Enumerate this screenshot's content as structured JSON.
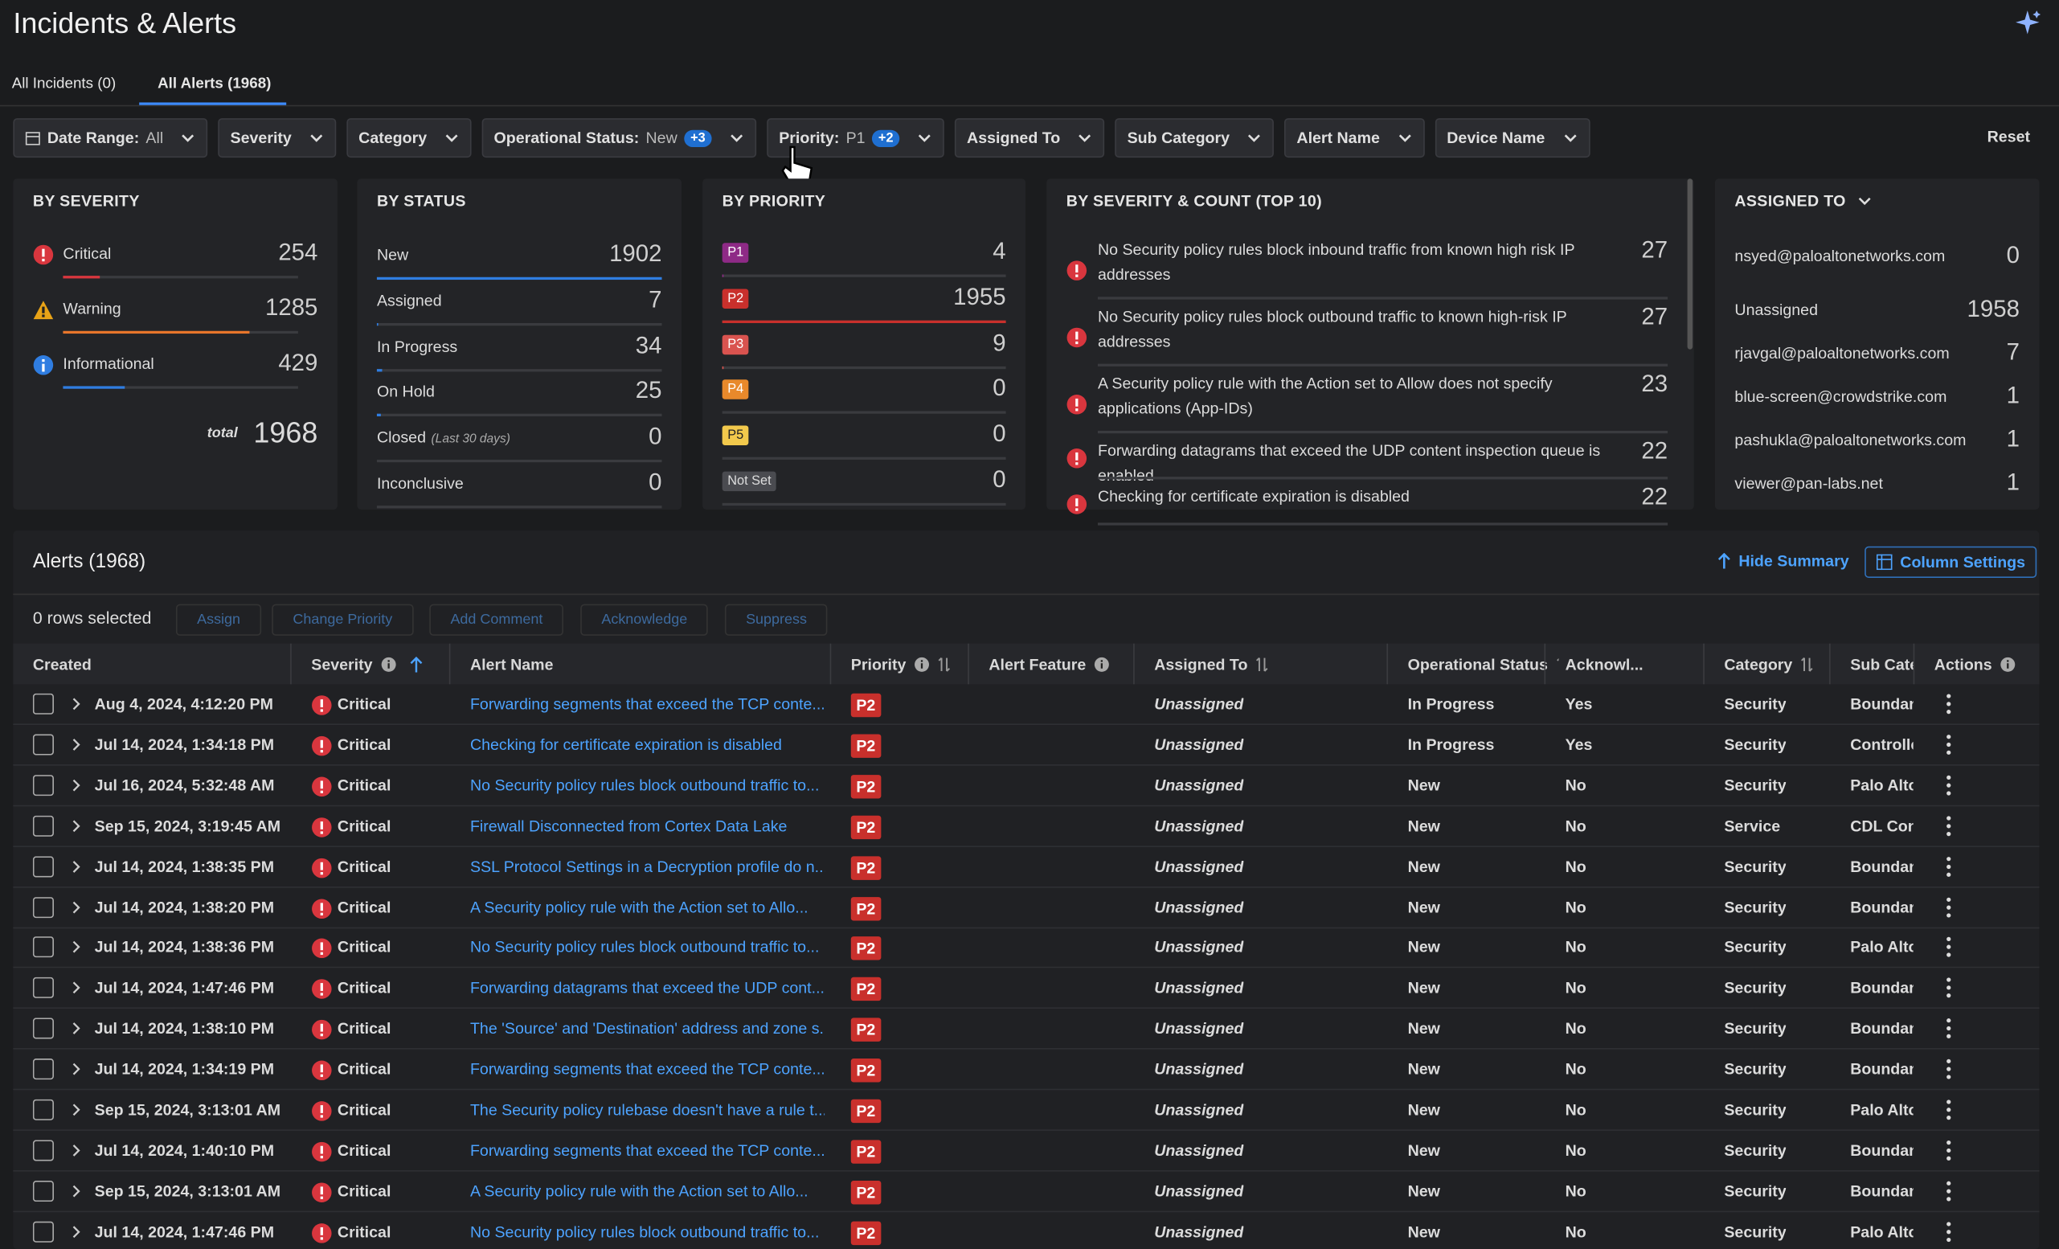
{
  "header": {
    "title": "Incidents & Alerts"
  },
  "tabs": [
    "All Incidents (0)",
    "All Alerts (1968)"
  ],
  "filters": [
    {
      "label": "Date Range:",
      "value": "All"
    },
    {
      "label": "Severity"
    },
    {
      "label": "Category"
    },
    {
      "label": "Operational Status:",
      "value": "New",
      "badge": "+3"
    },
    {
      "label": "Priority:",
      "value": "P1",
      "badge": "+2"
    },
    {
      "label": "Assigned To"
    },
    {
      "label": "Sub Category"
    },
    {
      "label": "Alert Name"
    },
    {
      "label": "Device Name"
    }
  ],
  "reset": "Reset",
  "summary": {
    "by_severity": {
      "title": "BY SEVERITY",
      "items": [
        {
          "label": "Critical",
          "count": 254
        },
        {
          "label": "Warning",
          "count": 1285
        },
        {
          "label": "Informational",
          "count": 429
        }
      ],
      "total_label": "total",
      "total": 1968
    },
    "by_status": {
      "title": "BY STATUS",
      "items": [
        {
          "label": "New",
          "count": 1902
        },
        {
          "label": "Assigned",
          "count": 7
        },
        {
          "label": "In Progress",
          "count": 34
        },
        {
          "label": "On Hold",
          "count": 25
        },
        {
          "label": "Closed",
          "note": "(Last 30 days)",
          "count": 0
        },
        {
          "label": "Inconclusive",
          "count": 0
        }
      ]
    },
    "by_priority": {
      "title": "BY PRIORITY",
      "items": [
        {
          "label": "P1",
          "count": 4
        },
        {
          "label": "P2",
          "count": 1955
        },
        {
          "label": "P3",
          "count": 9
        },
        {
          "label": "P4",
          "count": 0
        },
        {
          "label": "P5",
          "count": 0
        },
        {
          "label": "Not Set",
          "count": 0
        }
      ]
    },
    "by_severity_count": {
      "title": "BY SEVERITY & COUNT (TOP 10)",
      "items": [
        {
          "label": "No Security policy rules block inbound traffic from known high risk IP addresses",
          "count": 27
        },
        {
          "label": "No Security policy rules block outbound traffic to known high-risk IP addresses",
          "count": 27
        },
        {
          "label": "A Security policy rule with the Action set to Allow does not specify applications (App-IDs)",
          "count": 23
        },
        {
          "label": "Forwarding datagrams that exceed the UDP content inspection queue is enabled",
          "count": 22
        },
        {
          "label": "Checking for certificate expiration is disabled",
          "count": 22
        }
      ]
    },
    "assigned_to": {
      "title": "ASSIGNED TO",
      "items": [
        {
          "label": "nsyed@paloaltonetworks.com",
          "count": 0
        },
        {
          "label": "Unassigned",
          "count": 1958
        },
        {
          "label": "rjavgal@paloaltonetworks.com",
          "count": 7
        },
        {
          "label": "blue-screen@crowdstrike.com",
          "count": 1
        },
        {
          "label": "pashukla@paloaltonetworks.com",
          "count": 1
        },
        {
          "label": "viewer@pan-labs.net",
          "count": 1
        }
      ]
    }
  },
  "alerts": {
    "title": "Alerts (1968)",
    "hide_summary": "Hide Summary",
    "column_settings": "Column Settings",
    "selected": "0 rows selected",
    "actions": [
      "Assign",
      "Change Priority",
      "Add Comment",
      "Acknowledge",
      "Suppress"
    ],
    "columns": [
      "Created",
      "Severity",
      "Alert Name",
      "Priority",
      "Alert Feature",
      "Assigned To",
      "Operational Status",
      "Acknowl...",
      "Category",
      "Sub Cate",
      "Actions"
    ],
    "rows": [
      {
        "created": "Aug 4, 2024, 4:12:20 PM",
        "severity": "Critical",
        "name": "Forwarding segments that exceed the TCP conte...",
        "priority": "P2",
        "assigned": "Unassigned",
        "status": "In Progress",
        "ack": "Yes",
        "category": "Security",
        "sub": "Boundary"
      },
      {
        "created": "Jul 14, 2024, 1:34:18 PM",
        "severity": "Critical",
        "name": "Checking for certificate expiration is disabled",
        "priority": "P2",
        "assigned": "Unassigned",
        "status": "In Progress",
        "ack": "Yes",
        "category": "Security",
        "sub": "Controlle"
      },
      {
        "created": "Jul 16, 2024, 5:32:48 AM",
        "severity": "Critical",
        "name": "No Security policy rules block outbound traffic to...",
        "priority": "P2",
        "assigned": "Unassigned",
        "status": "New",
        "ack": "No",
        "category": "Security",
        "sub": "Palo Alto"
      },
      {
        "created": "Sep 15, 2024, 3:19:45 AM",
        "severity": "Critical",
        "name": "Firewall Disconnected from Cortex Data Lake",
        "priority": "P2",
        "assigned": "Unassigned",
        "status": "New",
        "ack": "No",
        "category": "Service",
        "sub": "CDL Con"
      },
      {
        "created": "Jul 14, 2024, 1:38:35 PM",
        "severity": "Critical",
        "name": "SSL Protocol Settings in a Decryption profile do n...",
        "priority": "P2",
        "assigned": "Unassigned",
        "status": "New",
        "ack": "No",
        "category": "Security",
        "sub": "Boundary"
      },
      {
        "created": "Jul 14, 2024, 1:38:20 PM",
        "severity": "Critical",
        "name": "A Security policy rule with the Action set to Allo...",
        "priority": "P2",
        "assigned": "Unassigned",
        "status": "New",
        "ack": "No",
        "category": "Security",
        "sub": "Boundary"
      },
      {
        "created": "Jul 14, 2024, 1:38:36 PM",
        "severity": "Critical",
        "name": "No Security policy rules block outbound traffic to...",
        "priority": "P2",
        "assigned": "Unassigned",
        "status": "New",
        "ack": "No",
        "category": "Security",
        "sub": "Palo Alto"
      },
      {
        "created": "Jul 14, 2024, 1:47:46 PM",
        "severity": "Critical",
        "name": "Forwarding datagrams that exceed the UDP cont...",
        "priority": "P2",
        "assigned": "Unassigned",
        "status": "New",
        "ack": "No",
        "category": "Security",
        "sub": "Boundary"
      },
      {
        "created": "Jul 14, 2024, 1:38:10 PM",
        "severity": "Critical",
        "name": "The 'Source' and 'Destination' address and zone s...",
        "priority": "P2",
        "assigned": "Unassigned",
        "status": "New",
        "ack": "No",
        "category": "Security",
        "sub": "Boundary"
      },
      {
        "created": "Jul 14, 2024, 1:34:19 PM",
        "severity": "Critical",
        "name": "Forwarding segments that exceed the TCP conte...",
        "priority": "P2",
        "assigned": "Unassigned",
        "status": "New",
        "ack": "No",
        "category": "Security",
        "sub": "Boundary"
      },
      {
        "created": "Sep 15, 2024, 3:13:01 AM",
        "severity": "Critical",
        "name": "The Security policy rulebase doesn't have a rule t...",
        "priority": "P2",
        "assigned": "Unassigned",
        "status": "New",
        "ack": "No",
        "category": "Security",
        "sub": "Palo Alto"
      },
      {
        "created": "Jul 14, 2024, 1:40:10 PM",
        "severity": "Critical",
        "name": "Forwarding segments that exceed the TCP conte...",
        "priority": "P2",
        "assigned": "Unassigned",
        "status": "New",
        "ack": "No",
        "category": "Security",
        "sub": "Boundary"
      },
      {
        "created": "Sep 15, 2024, 3:13:01 AM",
        "severity": "Critical",
        "name": "A Security policy rule with the Action set to Allo...",
        "priority": "P2",
        "assigned": "Unassigned",
        "status": "New",
        "ack": "No",
        "category": "Security",
        "sub": "Boundary"
      },
      {
        "created": "Jul 14, 2024, 1:47:46 PM",
        "severity": "Critical",
        "name": "No Security policy rules block outbound traffic to...",
        "priority": "P2",
        "assigned": "Unassigned",
        "status": "New",
        "ack": "No",
        "category": "Security",
        "sub": "Palo Alto"
      }
    ]
  }
}
